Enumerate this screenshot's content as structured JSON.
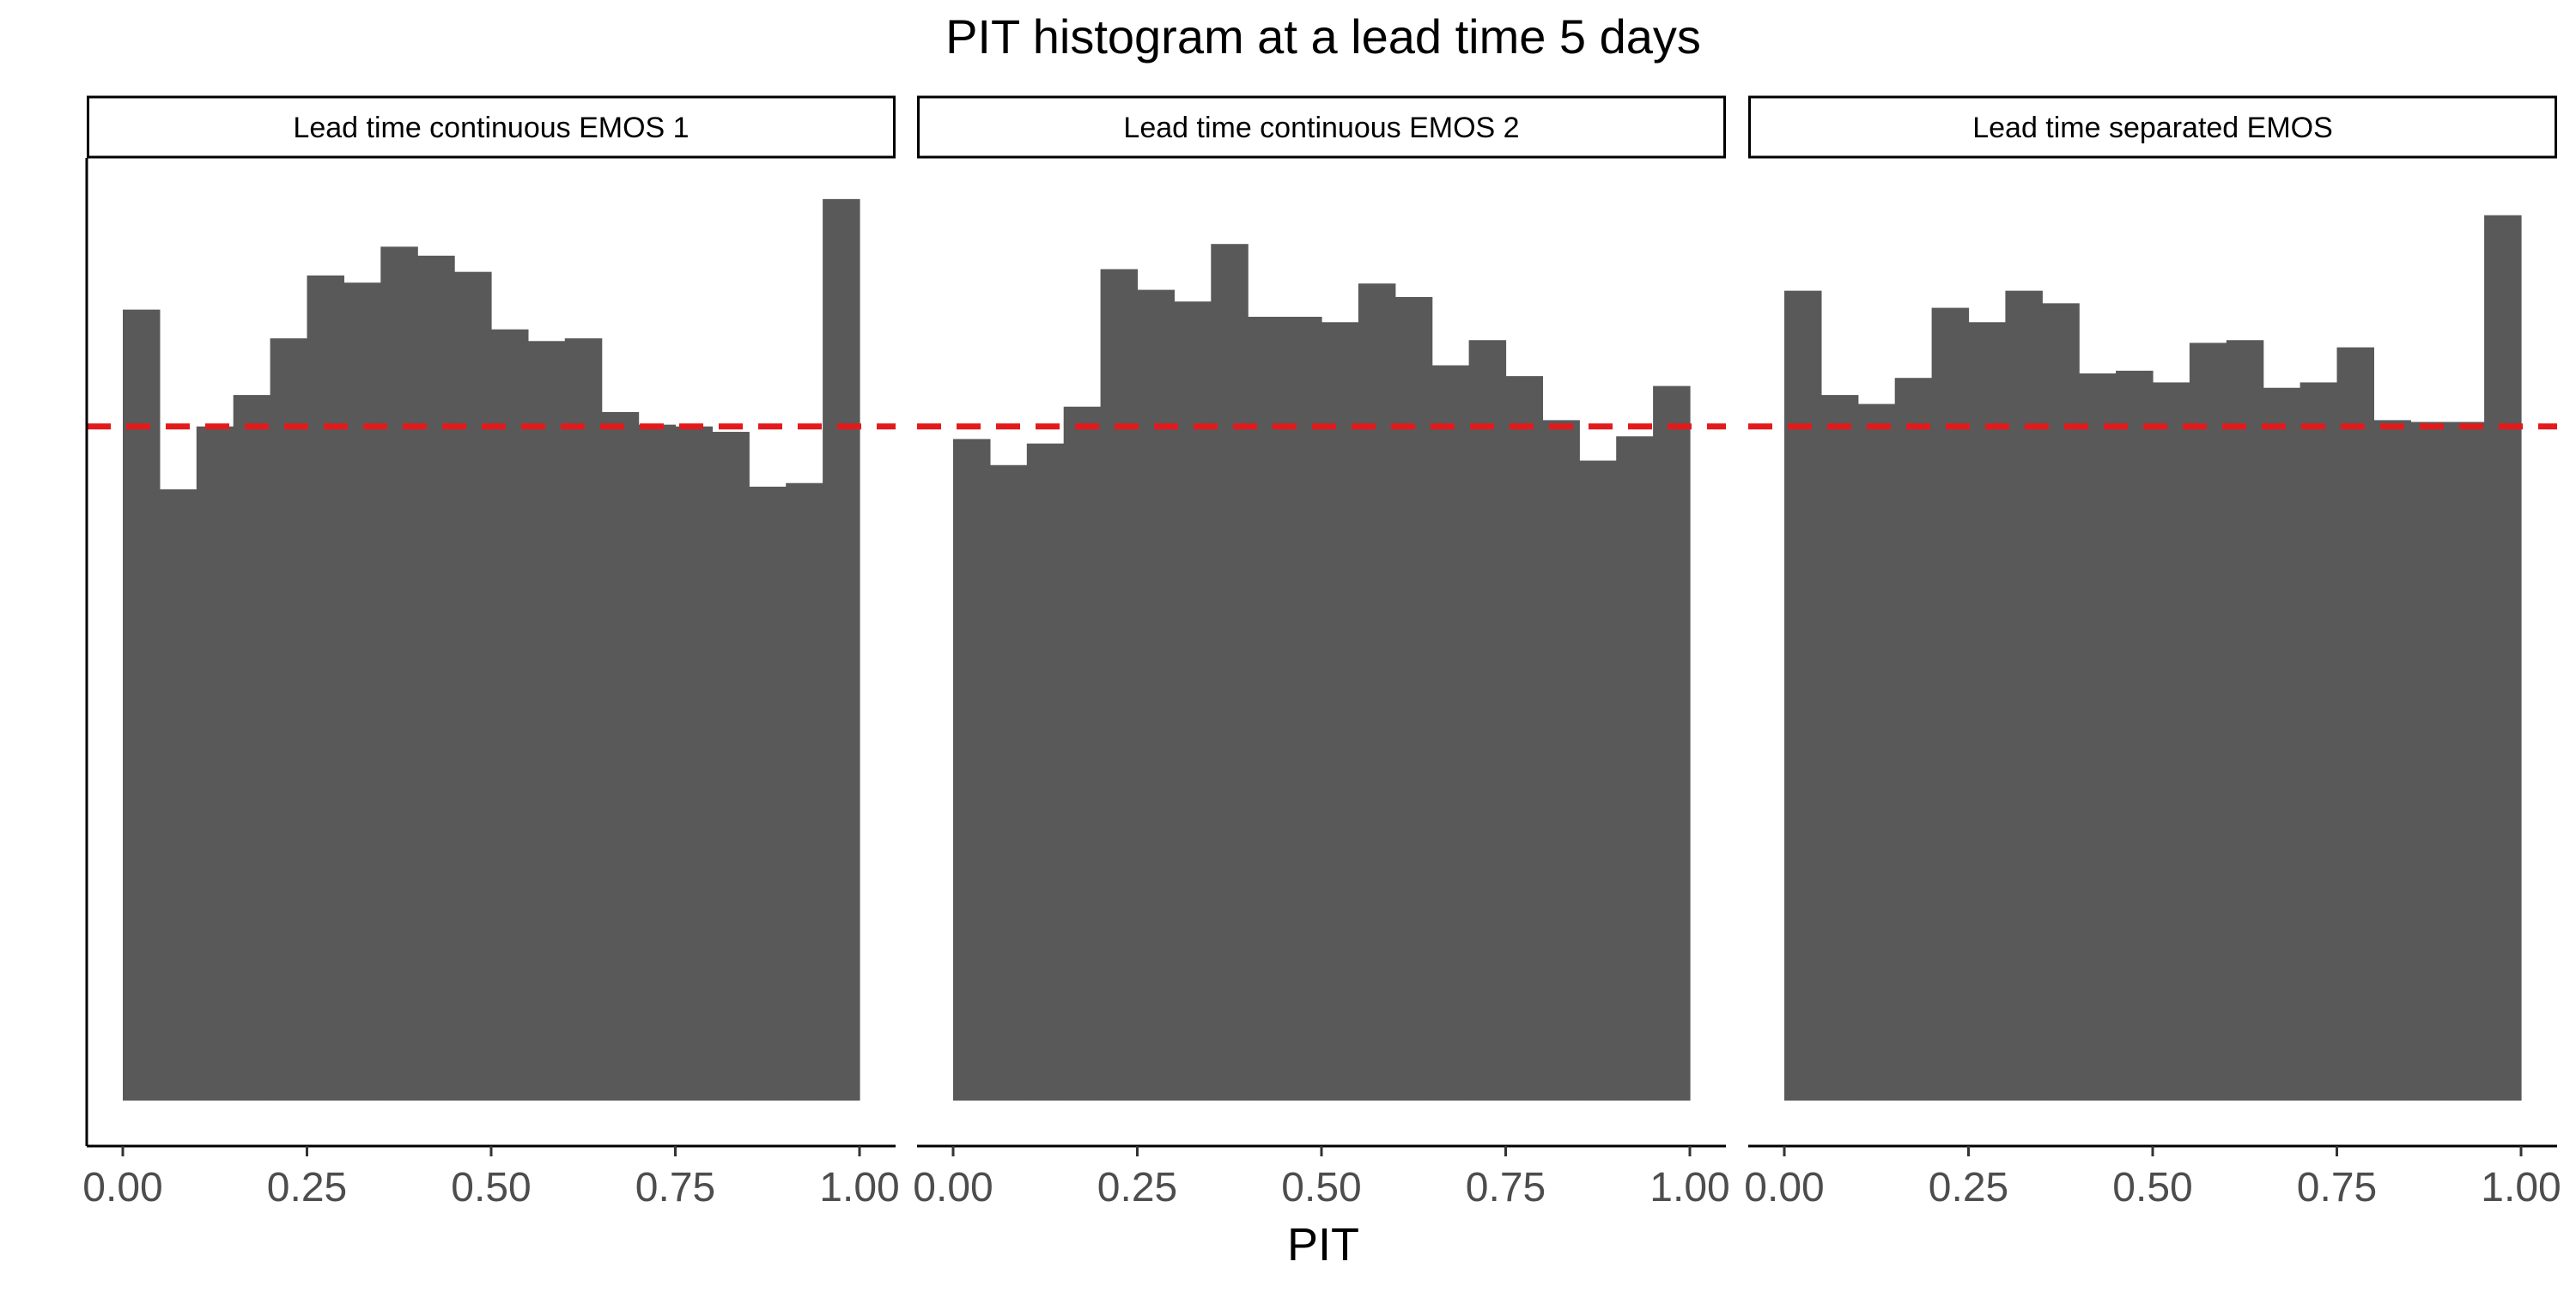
{
  "chart_data": {
    "type": "bar",
    "title": "PIT histogram at a lead time 5 days",
    "xlabel": "PIT",
    "ylabel": "",
    "xlim": [
      0,
      1
    ],
    "ylim": [
      0,
      1.08
    ],
    "x_ticks": [
      "0.00",
      "0.25",
      "0.50",
      "0.75",
      "1.00"
    ],
    "grid": false,
    "bin_width": 0.05,
    "bin_starts": [
      0,
      0.05,
      0.1,
      0.15,
      0.2,
      0.25,
      0.3,
      0.35,
      0.4,
      0.45,
      0.5,
      0.55,
      0.6,
      0.65,
      0.7,
      0.75,
      0.8,
      0.85,
      0.9,
      0.95
    ],
    "reference_line": {
      "value": 0.75,
      "style": "dashed",
      "color": "#e31a1c"
    },
    "bar_color": "#595959",
    "panels": [
      {
        "name": "Lead time continuous EMOS 1",
        "values": [
          0.88,
          0.68,
          0.75,
          0.785,
          0.848,
          0.918,
          0.91,
          0.95,
          0.94,
          0.922,
          0.858,
          0.845,
          0.848,
          0.766,
          0.752,
          0.75,
          0.744,
          0.683,
          0.687,
          1.003
        ]
      },
      {
        "name": "Lead time continuous EMOS 2",
        "values": [
          0.736,
          0.707,
          0.731,
          0.772,
          0.925,
          0.902,
          0.889,
          0.953,
          0.872,
          0.872,
          0.866,
          0.909,
          0.894,
          0.818,
          0.846,
          0.806,
          0.757,
          0.712,
          0.739,
          0.795
        ]
      },
      {
        "name": "Lead time separated EMOS",
        "values": [
          0.901,
          0.785,
          0.775,
          0.804,
          0.882,
          0.866,
          0.901,
          0.887,
          0.809,
          0.812,
          0.799,
          0.843,
          0.846,
          0.793,
          0.799,
          0.838,
          0.757,
          0.755,
          0.755,
          0.985
        ]
      }
    ]
  }
}
